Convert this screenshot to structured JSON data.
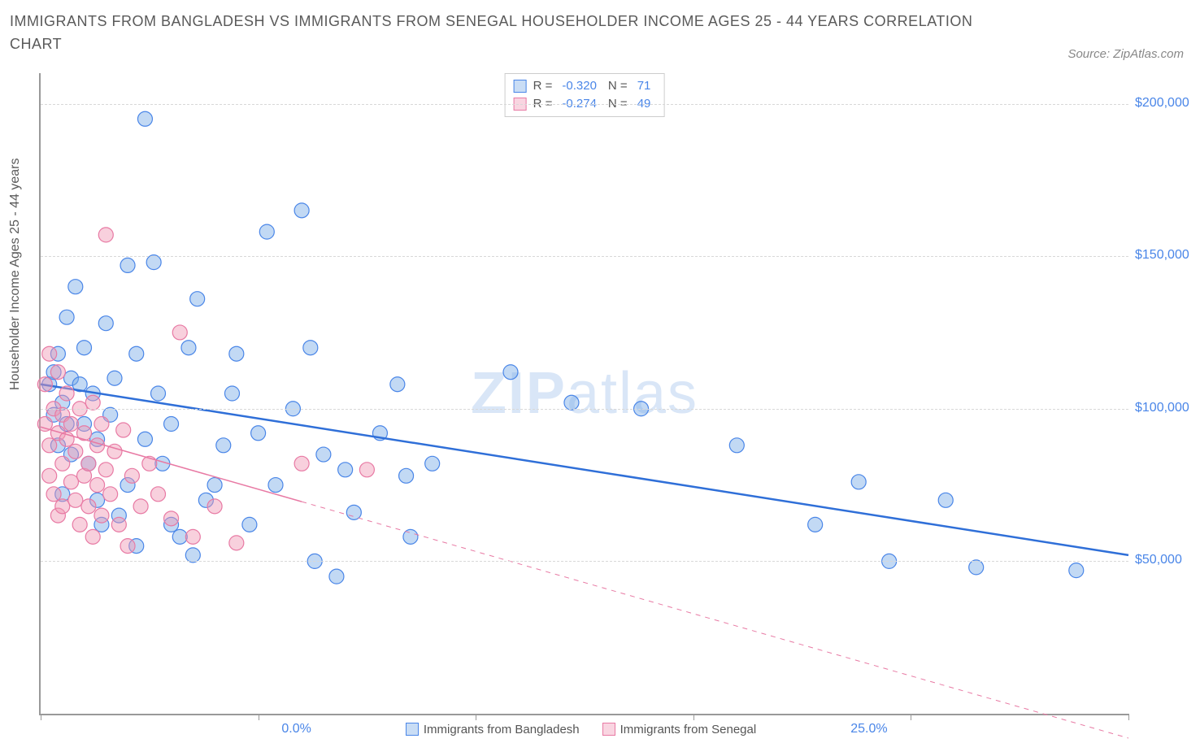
{
  "title": "IMMIGRANTS FROM BANGLADESH VS IMMIGRANTS FROM SENEGAL HOUSEHOLDER INCOME AGES 25 - 44 YEARS CORRELATION CHART",
  "source": "Source: ZipAtlas.com",
  "ylabel": "Householder Income Ages 25 - 44 years",
  "watermark_bold": "ZIP",
  "watermark_light": "atlas",
  "chart": {
    "type": "scatter",
    "x_min": 0.0,
    "x_max": 25.0,
    "y_min": 0,
    "y_max": 210000,
    "x_tick_labels": {
      "0": "0.0%",
      "25": "25.0%"
    },
    "x_minor_ticks": [
      0,
      5,
      10,
      15,
      20,
      25
    ],
    "y_gridlines": [
      50000,
      100000,
      150000,
      200000
    ],
    "y_tick_labels": {
      "50000": "$50,000",
      "100000": "$100,000",
      "150000": "$150,000",
      "200000": "$200,000"
    },
    "background_color": "#ffffff",
    "grid_color": "#d8d8d8",
    "series": [
      {
        "name": "Immigrants from Bangladesh",
        "color_fill": "rgba(120,170,230,0.45)",
        "color_stroke": "#4a86e8",
        "marker_radius": 9,
        "R_label": "R =",
        "R": "-0.320",
        "N_label": "N =",
        "N": "71",
        "trend": {
          "x1": 0,
          "y1": 108000,
          "x2": 25,
          "y2": 52000,
          "solid_until_x": 25,
          "color": "#2f6fd8",
          "width": 2.5
        },
        "points": [
          [
            0.2,
            108000
          ],
          [
            0.3,
            112000
          ],
          [
            0.3,
            98000
          ],
          [
            0.4,
            118000
          ],
          [
            0.4,
            88000
          ],
          [
            0.5,
            102000
          ],
          [
            0.5,
            72000
          ],
          [
            0.6,
            130000
          ],
          [
            0.6,
            95000
          ],
          [
            0.7,
            110000
          ],
          [
            0.7,
            85000
          ],
          [
            0.8,
            140000
          ],
          [
            0.9,
            108000
          ],
          [
            1.0,
            120000
          ],
          [
            1.0,
            95000
          ],
          [
            1.1,
            82000
          ],
          [
            1.2,
            105000
          ],
          [
            1.3,
            70000
          ],
          [
            1.3,
            90000
          ],
          [
            1.4,
            62000
          ],
          [
            1.5,
            128000
          ],
          [
            1.6,
            98000
          ],
          [
            1.7,
            110000
          ],
          [
            1.8,
            65000
          ],
          [
            2.0,
            147000
          ],
          [
            2.0,
            75000
          ],
          [
            2.2,
            118000
          ],
          [
            2.2,
            55000
          ],
          [
            2.4,
            195000
          ],
          [
            2.4,
            90000
          ],
          [
            2.6,
            148000
          ],
          [
            2.7,
            105000
          ],
          [
            2.8,
            82000
          ],
          [
            3.0,
            95000
          ],
          [
            3.0,
            62000
          ],
          [
            3.2,
            58000
          ],
          [
            3.4,
            120000
          ],
          [
            3.5,
            52000
          ],
          [
            3.6,
            136000
          ],
          [
            3.8,
            70000
          ],
          [
            4.0,
            75000
          ],
          [
            4.2,
            88000
          ],
          [
            4.4,
            105000
          ],
          [
            4.5,
            118000
          ],
          [
            4.8,
            62000
          ],
          [
            5.0,
            92000
          ],
          [
            5.2,
            158000
          ],
          [
            5.4,
            75000
          ],
          [
            5.8,
            100000
          ],
          [
            6.0,
            165000
          ],
          [
            6.2,
            120000
          ],
          [
            6.3,
            50000
          ],
          [
            6.5,
            85000
          ],
          [
            6.8,
            45000
          ],
          [
            7.0,
            80000
          ],
          [
            7.2,
            66000
          ],
          [
            7.8,
            92000
          ],
          [
            8.2,
            108000
          ],
          [
            8.4,
            78000
          ],
          [
            8.5,
            58000
          ],
          [
            9.0,
            82000
          ],
          [
            10.8,
            112000
          ],
          [
            12.2,
            102000
          ],
          [
            13.8,
            100000
          ],
          [
            16.0,
            88000
          ],
          [
            17.8,
            62000
          ],
          [
            18.8,
            76000
          ],
          [
            19.5,
            50000
          ],
          [
            20.8,
            70000
          ],
          [
            21.5,
            48000
          ],
          [
            23.8,
            47000
          ]
        ]
      },
      {
        "name": "Immigrants from Senegal",
        "color_fill": "rgba(240,150,180,0.45)",
        "color_stroke": "#e87aa4",
        "marker_radius": 9,
        "R_label": "R =",
        "R": "-0.274",
        "N_label": "N =",
        "N": "49",
        "trend": {
          "x1": 0,
          "y1": 94000,
          "x2": 25,
          "y2": -8000,
          "solid_until_x": 6.0,
          "color": "#e87aa4",
          "width": 1.5
        },
        "points": [
          [
            0.1,
            95000
          ],
          [
            0.1,
            108000
          ],
          [
            0.2,
            88000
          ],
          [
            0.2,
            118000
          ],
          [
            0.2,
            78000
          ],
          [
            0.3,
            100000
          ],
          [
            0.3,
            72000
          ],
          [
            0.4,
            92000
          ],
          [
            0.4,
            112000
          ],
          [
            0.4,
            65000
          ],
          [
            0.5,
            98000
          ],
          [
            0.5,
            82000
          ],
          [
            0.5,
            68000
          ],
          [
            0.6,
            90000
          ],
          [
            0.6,
            105000
          ],
          [
            0.7,
            76000
          ],
          [
            0.7,
            95000
          ],
          [
            0.8,
            70000
          ],
          [
            0.8,
            86000
          ],
          [
            0.9,
            100000
          ],
          [
            0.9,
            62000
          ],
          [
            1.0,
            78000
          ],
          [
            1.0,
            92000
          ],
          [
            1.1,
            68000
          ],
          [
            1.1,
            82000
          ],
          [
            1.2,
            102000
          ],
          [
            1.2,
            58000
          ],
          [
            1.3,
            88000
          ],
          [
            1.3,
            75000
          ],
          [
            1.4,
            65000
          ],
          [
            1.4,
            95000
          ],
          [
            1.5,
            80000
          ],
          [
            1.5,
            157000
          ],
          [
            1.6,
            72000
          ],
          [
            1.7,
            86000
          ],
          [
            1.8,
            62000
          ],
          [
            1.9,
            93000
          ],
          [
            2.0,
            55000
          ],
          [
            2.1,
            78000
          ],
          [
            2.3,
            68000
          ],
          [
            2.5,
            82000
          ],
          [
            2.7,
            72000
          ],
          [
            3.0,
            64000
          ],
          [
            3.2,
            125000
          ],
          [
            3.5,
            58000
          ],
          [
            4.0,
            68000
          ],
          [
            4.5,
            56000
          ],
          [
            6.0,
            82000
          ],
          [
            7.5,
            80000
          ]
        ]
      }
    ]
  }
}
